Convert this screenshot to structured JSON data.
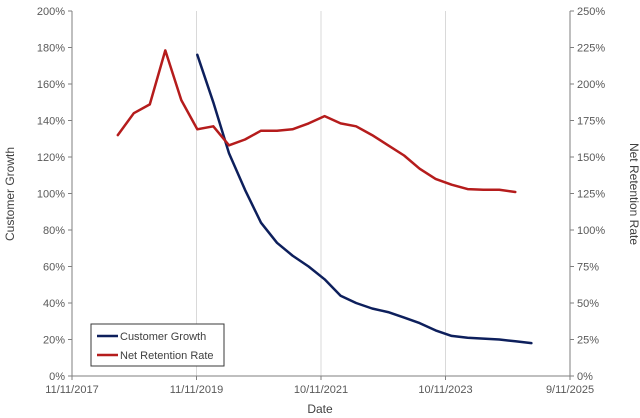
{
  "chart_data": {
    "type": "line",
    "xlabel": "Date",
    "ylabel": "Customer Growth",
    "y2label": "Net Retention Rate",
    "x_ticks": [
      "11/11/2017",
      "11/11/2019",
      "10/11/2021",
      "10/11/2023",
      "9/11/2025"
    ],
    "xlim": [
      "2017-11-11",
      "2025-09-11"
    ],
    "y_ticks": [
      "0%",
      "20%",
      "40%",
      "60%",
      "80%",
      "100%",
      "120%",
      "140%",
      "160%",
      "180%",
      "200%"
    ],
    "ylim": [
      0,
      200
    ],
    "y2_ticks": [
      "0%",
      "25%",
      "50%",
      "75%",
      "100%",
      "125%",
      "150%",
      "175%",
      "200%",
      "225%",
      "250%"
    ],
    "y2lim": [
      0,
      250
    ],
    "grid": {
      "vertical": true,
      "horizontal": false
    },
    "legend": {
      "position": "bottom-left",
      "boxed": true
    },
    "series": [
      {
        "name": "Customer Growth",
        "axis": "left",
        "color": "#0d1f5c",
        "points": [
          [
            "2019-11-01",
            176
          ],
          [
            "2020-02-01",
            150
          ],
          [
            "2020-05-01",
            122
          ],
          [
            "2020-08-01",
            102
          ],
          [
            "2020-11-01",
            84
          ],
          [
            "2021-02-01",
            73
          ],
          [
            "2021-05-01",
            66
          ],
          [
            "2021-08-01",
            60
          ],
          [
            "2021-11-01",
            53
          ],
          [
            "2022-02-01",
            44
          ],
          [
            "2022-05-01",
            40
          ],
          [
            "2022-08-01",
            37
          ],
          [
            "2022-11-01",
            35
          ],
          [
            "2023-02-01",
            32
          ],
          [
            "2023-05-01",
            29
          ],
          [
            "2023-08-01",
            25
          ],
          [
            "2023-11-01",
            22
          ],
          [
            "2024-02-01",
            21
          ],
          [
            "2024-05-01",
            20.5
          ],
          [
            "2024-08-01",
            20
          ],
          [
            "2024-11-01",
            19
          ],
          [
            "2025-02-01",
            18
          ]
        ]
      },
      {
        "name": "Net Retention Rate",
        "axis": "right",
        "color": "#b51c1c",
        "points": [
          [
            "2018-08-01",
            165
          ],
          [
            "2018-11-01",
            180
          ],
          [
            "2019-02-01",
            186
          ],
          [
            "2019-05-01",
            223
          ],
          [
            "2019-08-01",
            189
          ],
          [
            "2019-11-01",
            169
          ],
          [
            "2020-02-01",
            171
          ],
          [
            "2020-05-01",
            158
          ],
          [
            "2020-08-01",
            162
          ],
          [
            "2020-11-01",
            168
          ],
          [
            "2021-02-01",
            168
          ],
          [
            "2021-05-01",
            169
          ],
          [
            "2021-08-01",
            173
          ],
          [
            "2021-11-01",
            178
          ],
          [
            "2022-02-01",
            173
          ],
          [
            "2022-05-01",
            171
          ],
          [
            "2022-08-01",
            165
          ],
          [
            "2022-11-01",
            158
          ],
          [
            "2023-02-01",
            151
          ],
          [
            "2023-05-01",
            142
          ],
          [
            "2023-08-01",
            135
          ],
          [
            "2023-11-01",
            131
          ],
          [
            "2024-02-01",
            128
          ],
          [
            "2024-05-01",
            127.5
          ],
          [
            "2024-08-01",
            127.5
          ],
          [
            "2024-11-01",
            126
          ]
        ]
      }
    ]
  }
}
